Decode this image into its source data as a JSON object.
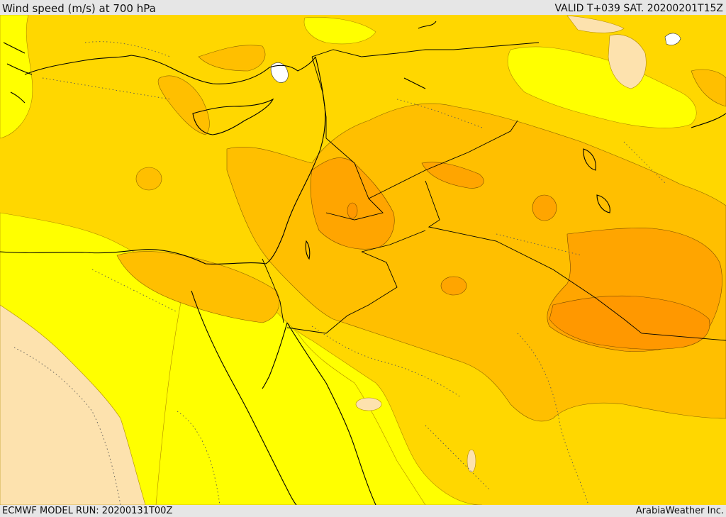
{
  "header": {
    "title": "Wind speed (m/s) at 700 hPa",
    "valid_time": "VALID T+039 SAT. 20200201T15Z"
  },
  "footer": {
    "model_run": "ECMWF MODEL RUN: 20200131T00Z",
    "credit": "ArabiaWeather Inc."
  },
  "map": {
    "variable": "wind speed",
    "units": "m/s",
    "level": "700 hPa",
    "colors": {
      "very_light": "#fde2ae",
      "light": "#ffff00",
      "medium": "#ffd700",
      "strong": "#ffbf00",
      "stronger": "#ffa500",
      "strongest": "#ff9800",
      "calm_white": "#ffffff",
      "coastline": "#000000",
      "contour": "#555555"
    }
  }
}
